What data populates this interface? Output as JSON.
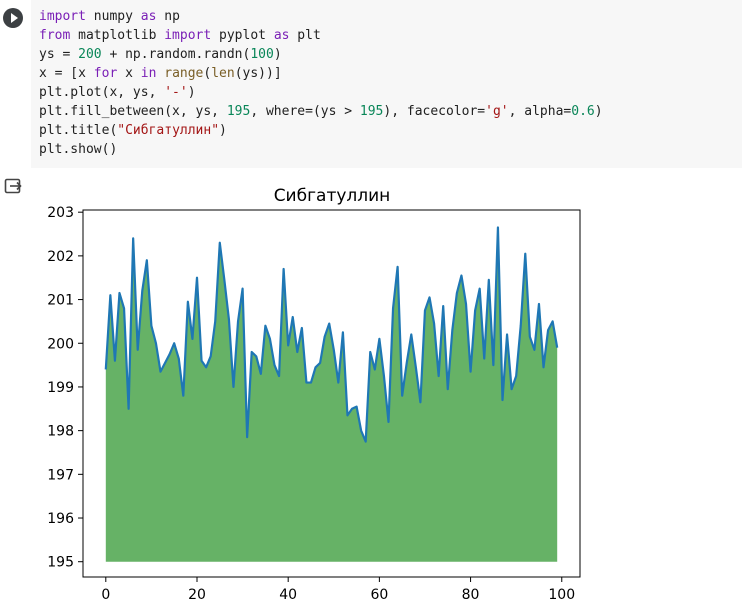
{
  "cell": {
    "code_lines": [
      [
        {
          "t": "import",
          "c": "kw"
        },
        {
          "t": " numpy ",
          "c": "op"
        },
        {
          "t": "as",
          "c": "kw"
        },
        {
          "t": " np",
          "c": "op"
        }
      ],
      [
        {
          "t": "from",
          "c": "kw"
        },
        {
          "t": " matplotlib ",
          "c": "op"
        },
        {
          "t": "import",
          "c": "kw"
        },
        {
          "t": " pyplot ",
          "c": "op"
        },
        {
          "t": "as",
          "c": "kw"
        },
        {
          "t": " plt",
          "c": "op"
        }
      ],
      [
        {
          "t": "ys = ",
          "c": "op"
        },
        {
          "t": "200",
          "c": "num"
        },
        {
          "t": " + np.random.randn(",
          "c": "op"
        },
        {
          "t": "100",
          "c": "num"
        },
        {
          "t": ")",
          "c": "op"
        }
      ],
      [
        {
          "t": "x = [x ",
          "c": "op"
        },
        {
          "t": "for",
          "c": "kw"
        },
        {
          "t": " x ",
          "c": "op"
        },
        {
          "t": "in",
          "c": "kw"
        },
        {
          "t": " ",
          "c": "op"
        },
        {
          "t": "range",
          "c": "fn"
        },
        {
          "t": "(",
          "c": "op"
        },
        {
          "t": "len",
          "c": "fn"
        },
        {
          "t": "(ys))]",
          "c": "op"
        }
      ],
      [
        {
          "t": "plt.plot(x, ys, ",
          "c": "op"
        },
        {
          "t": "'-'",
          "c": "str"
        },
        {
          "t": ")",
          "c": "op"
        }
      ],
      [
        {
          "t": "plt.fill_between(x, ys, ",
          "c": "op"
        },
        {
          "t": "195",
          "c": "num"
        },
        {
          "t": ", where=(ys > ",
          "c": "op"
        },
        {
          "t": "195",
          "c": "num"
        },
        {
          "t": "), facecolor=",
          "c": "op"
        },
        {
          "t": "'g'",
          "c": "str"
        },
        {
          "t": ", alpha=",
          "c": "op"
        },
        {
          "t": "0.6",
          "c": "num"
        },
        {
          "t": ")",
          "c": "op"
        }
      ],
      [
        {
          "t": "plt.title(",
          "c": "op"
        },
        {
          "t": "\"Сибгатуллин\"",
          "c": "str"
        },
        {
          "t": ")",
          "c": "op"
        }
      ],
      [
        {
          "t": "plt.show()",
          "c": "op"
        }
      ]
    ]
  },
  "icons": {
    "run": "play-icon",
    "output": "output-exit-icon"
  },
  "colors": {
    "line": "#1f77b4",
    "fill": "#66b266",
    "code_bg": "#f7f7f7"
  },
  "chart_data": {
    "type": "area",
    "title": "Сибгатуллин",
    "xlabel": "",
    "ylabel": "",
    "xlim": [
      -5,
      104
    ],
    "ylim": [
      194.65,
      203.05
    ],
    "fill_baseline": 195,
    "xticks": [
      0,
      20,
      40,
      60,
      80,
      100
    ],
    "yticks": [
      195,
      196,
      197,
      198,
      199,
      200,
      201,
      202,
      203
    ],
    "grid": false,
    "values": [
      199.4,
      201.1,
      199.6,
      201.15,
      200.8,
      198.5,
      202.4,
      199.85,
      201.2,
      201.9,
      200.4,
      200.0,
      199.35,
      199.55,
      199.75,
      200.0,
      199.65,
      198.8,
      200.95,
      200.1,
      201.5,
      199.6,
      199.45,
      199.7,
      200.5,
      202.3,
      201.45,
      200.55,
      199.0,
      200.5,
      201.25,
      197.85,
      199.8,
      199.7,
      199.3,
      200.4,
      200.1,
      199.5,
      199.25,
      201.7,
      199.95,
      200.6,
      199.8,
      200.35,
      199.1,
      199.1,
      199.45,
      199.55,
      200.15,
      200.45,
      199.85,
      199.1,
      200.25,
      198.35,
      198.5,
      198.55,
      198.0,
      197.75,
      199.8,
      199.4,
      200.1,
      199.25,
      198.2,
      200.8,
      201.75,
      198.8,
      199.55,
      200.2,
      199.45,
      198.65,
      200.75,
      201.05,
      200.45,
      199.25,
      200.85,
      198.95,
      200.3,
      201.15,
      201.55,
      200.9,
      199.35,
      200.75,
      201.25,
      199.65,
      201.45,
      199.5,
      202.65,
      198.7,
      200.2,
      198.95,
      199.25,
      200.4,
      202.05,
      200.15,
      199.85,
      200.9,
      199.45,
      200.3,
      200.5,
      199.9
    ]
  }
}
